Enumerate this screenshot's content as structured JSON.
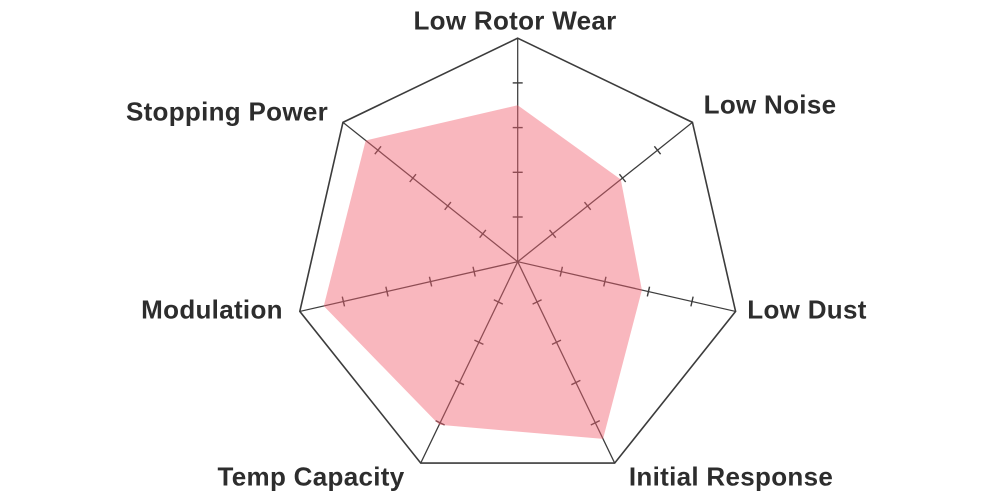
{
  "chart_data": {
    "type": "radar",
    "categories": [
      "Low Rotor Wear",
      "Low Noise",
      "Low Dust",
      "Initial Response",
      "Temp Capacity",
      "Modulation",
      "Stopping Power"
    ],
    "values": [
      7.0,
      5.9,
      5.7,
      8.8,
      8.1,
      8.9,
      8.7
    ],
    "scale": {
      "min": 0,
      "max": 10,
      "tick_interval": 2,
      "tick_labels_visible": false
    },
    "layout_hints": {
      "start_axis": "top",
      "direction": "clockwise",
      "outer_outline": true,
      "concentric_rings": false,
      "radial_spokes": true,
      "tick_marks_on_spokes": true,
      "legend_visible": false,
      "title_visible": false
    },
    "colors": {
      "fill": "#F25F6F",
      "fill_opacity": 0.45,
      "fill_over_white": "#F9B7BE",
      "line": "#3C3C3C",
      "label_text": "#2D2D2D",
      "background": "#FFFFFF"
    }
  }
}
